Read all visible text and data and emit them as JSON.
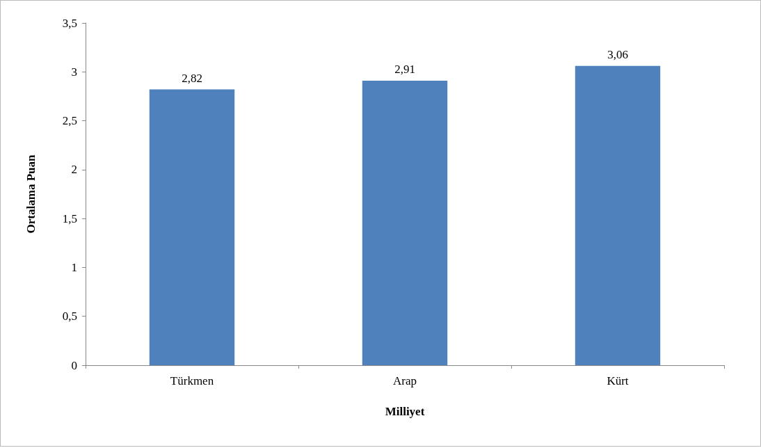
{
  "chart_data": {
    "type": "bar",
    "xlabel": "Milliyet",
    "ylabel": "Ortalama Puan",
    "categories": [
      "Türkmen",
      "Arap",
      "Kürt"
    ],
    "values": [
      2.82,
      2.91,
      3.06
    ],
    "value_labels": [
      "2,82",
      "2,91",
      "3,06"
    ],
    "color": "#4f81bd",
    "ylim": [
      0,
      3.5
    ],
    "yticks": [
      0,
      {
        "value": 0.5,
        "label": "0,5"
      },
      1,
      {
        "value": 1.5,
        "label": "1,5"
      },
      2,
      {
        "value": 2.5,
        "label": "2,5"
      },
      3,
      {
        "value": 3.5,
        "label": "3,5"
      }
    ],
    "grid": false
  }
}
